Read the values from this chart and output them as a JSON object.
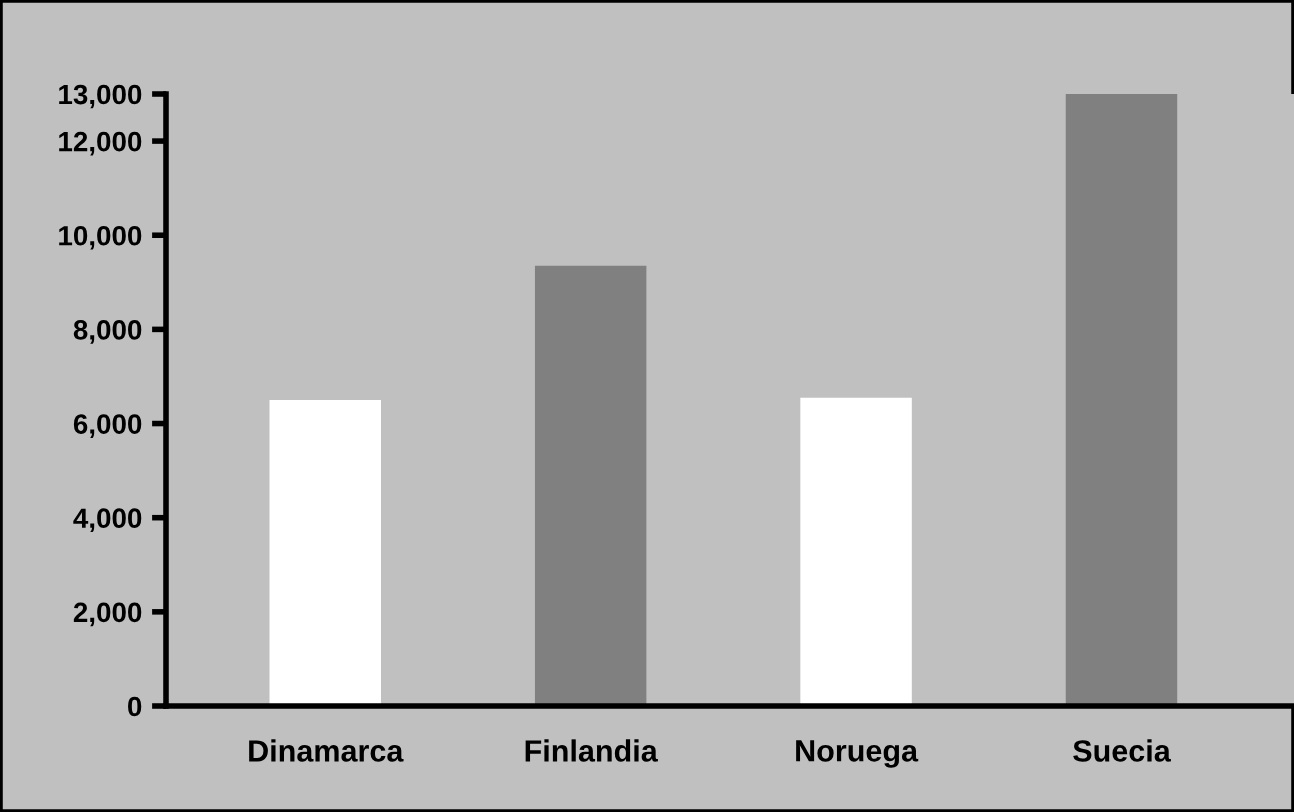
{
  "chart_data": {
    "type": "bar",
    "categories": [
      "Dinamarca",
      "Finlandia",
      "Noruega",
      "Suecia"
    ],
    "values": [
      6500,
      9350,
      6550,
      13000
    ],
    "colors": [
      "#ffffff",
      "#808080",
      "#ffffff",
      "#808080"
    ],
    "ylim": [
      0,
      13000
    ],
    "yticks": [
      0,
      {
        "value": 2000,
        "label": "2,000"
      },
      {
        "value": 4000,
        "label": "4,000"
      },
      {
        "value": 6000,
        "label": "6,000"
      },
      {
        "value": 8000,
        "label": "8,000"
      },
      {
        "value": 10000,
        "label": "10,000"
      },
      {
        "value": 12000,
        "label": "12,000"
      },
      {
        "value": 13000,
        "label": "13,000"
      }
    ],
    "grid": false,
    "legend": false
  }
}
